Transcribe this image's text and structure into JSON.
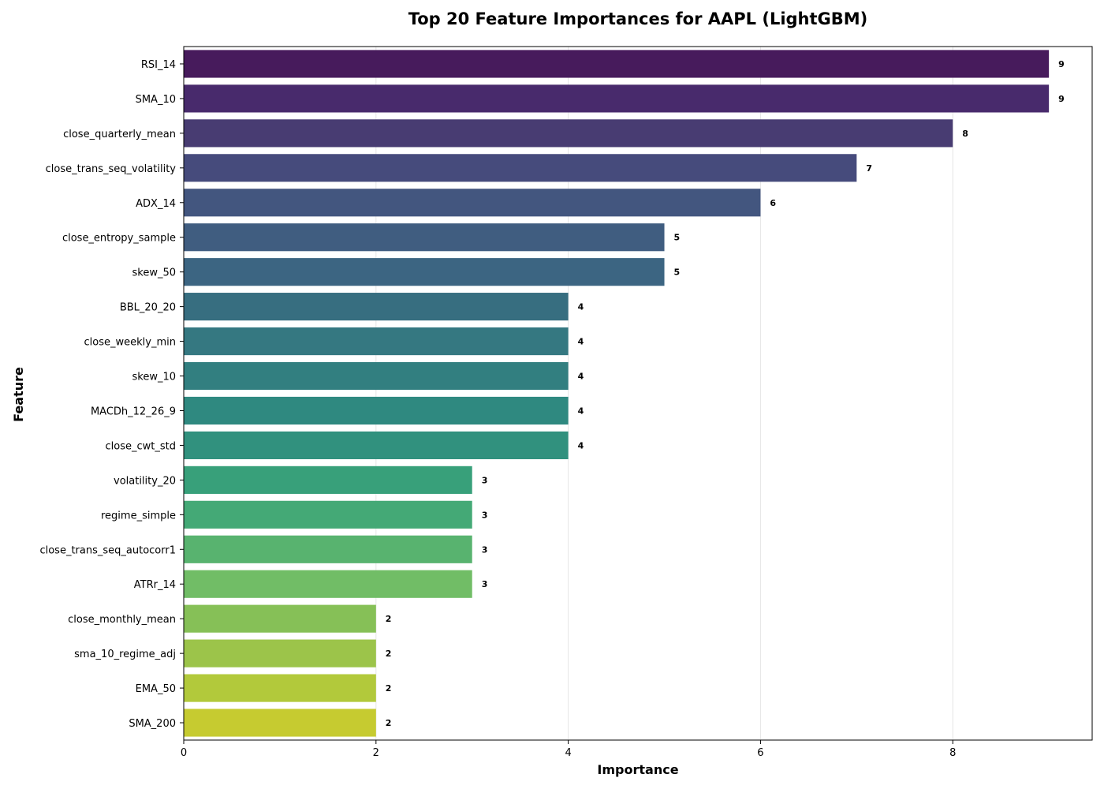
{
  "chart_data": {
    "type": "bar",
    "orientation": "horizontal",
    "title": "Top 20 Feature Importances for AAPL (LightGBM)",
    "xlabel": "Importance",
    "ylabel": "Feature",
    "xlim": [
      0,
      9.45
    ],
    "xticks": [
      0,
      2,
      4,
      6,
      8
    ],
    "grid": true,
    "legend": "none",
    "colormap": "viridis",
    "categories": [
      "RSI_14",
      "SMA_10",
      "close_quarterly_mean",
      "close_trans_seq_volatility",
      "ADX_14",
      "close_entropy_sample",
      "skew_50",
      "BBL_20_20",
      "close_weekly_min",
      "skew_10",
      "MACDh_12_26_9",
      "close_cwt_std",
      "volatility_20",
      "regime_simple",
      "close_trans_seq_autocorr1",
      "ATRr_14",
      "close_monthly_mean",
      "sma_10_regime_adj",
      "EMA_50",
      "SMA_200"
    ],
    "values": [
      9,
      9,
      8,
      7,
      6,
      5,
      5,
      4,
      4,
      4,
      4,
      4,
      3,
      3,
      3,
      3,
      2,
      2,
      2,
      2
    ],
    "colors": [
      "#471b5c",
      "#482a6c",
      "#483c72",
      "#464b7c",
      "#43567f",
      "#405d80",
      "#3c6582",
      "#376e80",
      "#357881",
      "#327f80",
      "#2f8980",
      "#31917e",
      "#38a07a",
      "#44a976",
      "#58b36f",
      "#71bd66",
      "#86c057",
      "#9cc44a",
      "#b2c93b",
      "#c6cb30"
    ]
  }
}
